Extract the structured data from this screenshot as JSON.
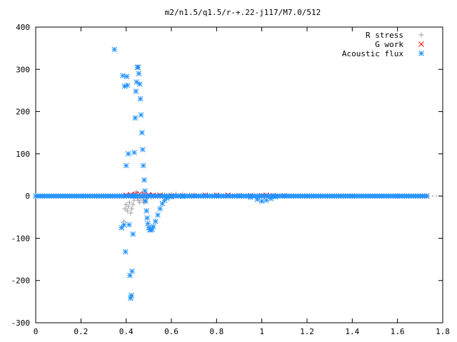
{
  "chart_data": {
    "type": "scatter",
    "title": "m2/n1.5/q1.5/r-+.22-j117/M7.0/512",
    "xlabel": "",
    "ylabel": "",
    "xlim": [
      0,
      1.8
    ],
    "ylim": [
      -300,
      400
    ],
    "x_ticks": [
      "0",
      "0.2",
      "0.4",
      "0.6",
      "0.8",
      "1",
      "1.2",
      "1.4",
      "1.6",
      "1.8"
    ],
    "y_ticks": [
      "400",
      "300",
      "200",
      "100",
      "0",
      "-100",
      "-200",
      "-300"
    ],
    "grid": false,
    "legend_position": "top-right",
    "series": [
      {
        "name": "R stress",
        "marker": "plus",
        "color": "#a0a0a0",
        "points": [
          [
            0.38,
            -75
          ],
          [
            0.39,
            -60
          ],
          [
            0.395,
            -30
          ],
          [
            0.4,
            -20
          ],
          [
            0.405,
            -35
          ],
          [
            0.41,
            -25
          ],
          [
            0.415,
            -15
          ],
          [
            0.42,
            -40
          ],
          [
            0.425,
            -30
          ],
          [
            0.43,
            -20
          ],
          [
            0.435,
            -10
          ],
          [
            0.44,
            5
          ],
          [
            0.445,
            10
          ],
          [
            0.45,
            -5
          ],
          [
            0.455,
            -10
          ],
          [
            0.46,
            -15
          ],
          [
            0.465,
            -5
          ],
          [
            0.47,
            0
          ],
          [
            0.475,
            -10
          ],
          [
            0.48,
            -15
          ],
          [
            0.485,
            -12
          ],
          [
            0.49,
            -5
          ],
          [
            0.5,
            0
          ],
          [
            0.51,
            -3
          ],
          [
            0.52,
            -2
          ],
          [
            0.53,
            0
          ],
          [
            0.55,
            2
          ],
          [
            0.57,
            3
          ],
          [
            0.6,
            4
          ],
          [
            0.62,
            5
          ],
          [
            0.65,
            4
          ],
          [
            0.68,
            3
          ],
          [
            0.7,
            3
          ],
          [
            0.75,
            2
          ],
          [
            0.8,
            2
          ],
          [
            0.85,
            1
          ],
          [
            0.9,
            1
          ],
          [
            0.95,
            1
          ],
          [
            1.0,
            2
          ],
          [
            1.05,
            1
          ],
          [
            1.1,
            0
          ],
          [
            1.2,
            0
          ],
          [
            1.4,
            0
          ],
          [
            1.6,
            0
          ],
          [
            1.73,
            0
          ]
        ]
      },
      {
        "name": "G work",
        "marker": "cross",
        "color": "#ff0000",
        "points": [
          [
            0.38,
            0
          ],
          [
            0.4,
            2
          ],
          [
            0.42,
            3
          ],
          [
            0.44,
            4
          ],
          [
            0.46,
            5
          ],
          [
            0.48,
            4
          ],
          [
            0.5,
            3
          ],
          [
            0.52,
            2
          ],
          [
            0.55,
            2
          ],
          [
            0.6,
            1
          ],
          [
            0.65,
            1
          ],
          [
            0.7,
            1
          ],
          [
            0.75,
            2
          ],
          [
            0.8,
            2
          ],
          [
            0.85,
            2
          ],
          [
            0.9,
            1
          ],
          [
            0.95,
            1
          ],
          [
            1.0,
            1
          ],
          [
            1.02,
            2
          ],
          [
            1.05,
            1
          ],
          [
            1.1,
            1
          ],
          [
            1.2,
            0
          ],
          [
            1.4,
            0
          ],
          [
            1.6,
            0
          ],
          [
            1.73,
            0
          ]
        ]
      },
      {
        "name": "Acoustic flux",
        "marker": "star",
        "color": "#1e90ff",
        "points": [
          [
            0.38,
            -75
          ],
          [
            0.385,
            285
          ],
          [
            0.39,
            -68
          ],
          [
            0.393,
            260
          ],
          [
            0.397,
            -132
          ],
          [
            0.4,
            72
          ],
          [
            0.403,
            283
          ],
          [
            0.406,
            262
          ],
          [
            0.41,
            100
          ],
          [
            0.413,
            -68
          ],
          [
            0.417,
            -188
          ],
          [
            0.42,
            -242
          ],
          [
            0.423,
            -235
          ],
          [
            0.426,
            -178
          ],
          [
            0.43,
            -90
          ],
          [
            0.433,
            0
          ],
          [
            0.436,
            103
          ],
          [
            0.44,
            185
          ],
          [
            0.443,
            248
          ],
          [
            0.446,
            270
          ],
          [
            0.45,
            305
          ],
          [
            0.453,
            305
          ],
          [
            0.456,
            290
          ],
          [
            0.46,
            265
          ],
          [
            0.463,
            230
          ],
          [
            0.466,
            192
          ],
          [
            0.47,
            150
          ],
          [
            0.473,
            110
          ],
          [
            0.476,
            72
          ],
          [
            0.48,
            38
          ],
          [
            0.483,
            12
          ],
          [
            0.486,
            -12
          ],
          [
            0.49,
            -35
          ],
          [
            0.493,
            -52
          ],
          [
            0.496,
            -65
          ],
          [
            0.5,
            -75
          ],
          [
            0.505,
            -80
          ],
          [
            0.51,
            -80
          ],
          [
            0.515,
            -78
          ],
          [
            0.52,
            -72
          ],
          [
            0.53,
            -60
          ],
          [
            0.54,
            -45
          ],
          [
            0.55,
            -30
          ],
          [
            0.56,
            -18
          ],
          [
            0.57,
            -10
          ],
          [
            0.58,
            -5
          ],
          [
            0.6,
            -2
          ],
          [
            0.65,
            -1
          ],
          [
            0.7,
            0
          ],
          [
            0.8,
            0
          ],
          [
            0.9,
            0
          ],
          [
            0.95,
            -3
          ],
          [
            0.98,
            -8
          ],
          [
            1.0,
            -12
          ],
          [
            1.02,
            -10
          ],
          [
            1.04,
            -6
          ],
          [
            1.06,
            -2
          ],
          [
            1.1,
            0
          ],
          [
            1.2,
            0
          ],
          [
            1.4,
            0
          ],
          [
            1.6,
            0
          ],
          [
            1.73,
            0
          ],
          [
            0.348,
            347
          ]
        ]
      }
    ]
  }
}
